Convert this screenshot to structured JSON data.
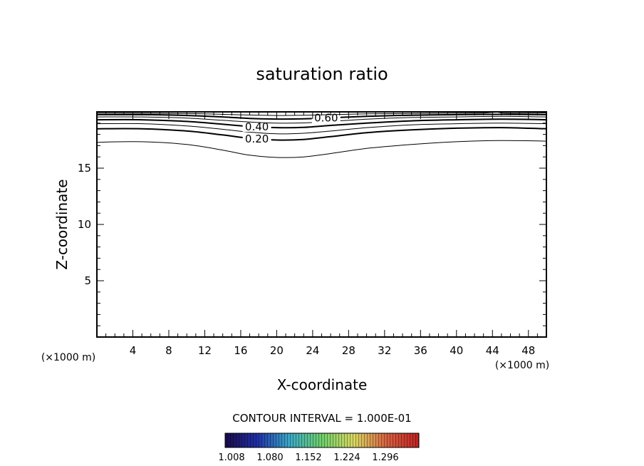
{
  "chart_data": {
    "type": "contour",
    "title": "saturation ratio",
    "xlabel": "X-coordinate",
    "ylabel": "Z-coordinate",
    "x_unit_label": "(×1000 m)",
    "x_unit_label_right": "(×1000 m)",
    "xlim": [
      0,
      50
    ],
    "ylim": [
      0,
      20
    ],
    "x_ticks": [
      "4",
      "8",
      "12",
      "16",
      "20",
      "24",
      "28",
      "32",
      "36",
      "40",
      "44",
      "48"
    ],
    "y_ticks": [
      "5",
      "10",
      "15"
    ],
    "x_tick_values": [
      4,
      8,
      12,
      16,
      20,
      24,
      28,
      32,
      36,
      40,
      44,
      48
    ],
    "y_tick_values": [
      5,
      10,
      15
    ],
    "contours": [
      {
        "level": 0.1,
        "label": "",
        "points": [
          [
            0,
            17.3
          ],
          [
            5,
            17.35
          ],
          [
            10,
            17.1
          ],
          [
            14,
            16.6
          ],
          [
            17,
            16.15
          ],
          [
            20,
            15.95
          ],
          [
            23,
            16.0
          ],
          [
            26,
            16.3
          ],
          [
            30,
            16.75
          ],
          [
            35,
            17.1
          ],
          [
            40,
            17.35
          ],
          [
            45,
            17.45
          ],
          [
            50,
            17.4
          ]
        ]
      },
      {
        "level": 0.2,
        "label": "0.20",
        "points": [
          [
            0,
            18.5
          ],
          [
            5,
            18.5
          ],
          [
            10,
            18.3
          ],
          [
            14,
            17.95
          ],
          [
            17,
            17.65
          ],
          [
            20,
            17.5
          ],
          [
            23,
            17.55
          ],
          [
            26,
            17.8
          ],
          [
            30,
            18.15
          ],
          [
            35,
            18.4
          ],
          [
            40,
            18.55
          ],
          [
            45,
            18.6
          ],
          [
            50,
            18.5
          ]
        ]
      },
      {
        "level": 0.3,
        "label": "",
        "points": [
          [
            0,
            18.95
          ],
          [
            5,
            18.95
          ],
          [
            10,
            18.75
          ],
          [
            14,
            18.45
          ],
          [
            17,
            18.2
          ],
          [
            20,
            18.05
          ],
          [
            23,
            18.1
          ],
          [
            26,
            18.3
          ],
          [
            30,
            18.6
          ],
          [
            35,
            18.85
          ],
          [
            40,
            18.95
          ],
          [
            45,
            19.0
          ],
          [
            50,
            18.95
          ]
        ]
      },
      {
        "level": 0.4,
        "label": "0.40",
        "points": [
          [
            0,
            19.3
          ],
          [
            5,
            19.3
          ],
          [
            10,
            19.15
          ],
          [
            14,
            18.9
          ],
          [
            17,
            18.7
          ],
          [
            20,
            18.6
          ],
          [
            23,
            18.62
          ],
          [
            26,
            18.8
          ],
          [
            30,
            19.0
          ],
          [
            35,
            19.2
          ],
          [
            40,
            19.3
          ],
          [
            45,
            19.35
          ],
          [
            50,
            19.3
          ]
        ]
      },
      {
        "level": 0.5,
        "label": "",
        "points": [
          [
            0,
            19.55
          ],
          [
            5,
            19.55
          ],
          [
            10,
            19.45
          ],
          [
            14,
            19.25
          ],
          [
            17,
            19.1
          ],
          [
            20,
            19.0
          ],
          [
            23,
            19.02
          ],
          [
            26,
            19.15
          ],
          [
            30,
            19.35
          ],
          [
            35,
            19.5
          ],
          [
            40,
            19.55
          ],
          [
            45,
            19.6
          ],
          [
            50,
            19.55
          ]
        ]
      },
      {
        "level": 0.6,
        "label": "0.60",
        "points": [
          [
            0,
            19.75
          ],
          [
            5,
            19.75
          ],
          [
            10,
            19.68
          ],
          [
            14,
            19.55
          ],
          [
            17,
            19.42
          ],
          [
            20,
            19.36
          ],
          [
            23,
            19.38
          ],
          [
            26,
            19.48
          ],
          [
            30,
            19.6
          ],
          [
            35,
            19.7
          ],
          [
            40,
            19.75
          ],
          [
            45,
            19.78
          ],
          [
            50,
            19.75
          ]
        ]
      },
      {
        "level": 0.7,
        "label": "",
        "points": [
          [
            0,
            19.88
          ],
          [
            10,
            19.85
          ],
          [
            17,
            19.72
          ],
          [
            20,
            19.68
          ],
          [
            23,
            19.7
          ],
          [
            30,
            19.82
          ],
          [
            40,
            19.88
          ],
          [
            43,
            19.9
          ],
          [
            44.5,
            19.97
          ],
          [
            45.5,
            19.88
          ],
          [
            50,
            19.9
          ]
        ]
      }
    ],
    "contour_interval_text": "CONTOUR INTERVAL = 1.000E-01",
    "colorbar": {
      "labels": [
        "1.008",
        "1.080",
        "1.152",
        "1.224",
        "1.296"
      ],
      "colors": [
        "#1a0a4a",
        "#1f2fa8",
        "#3aa9c8",
        "#6fd06a",
        "#d8d860",
        "#d86040",
        "#c02020"
      ]
    },
    "grid": false
  }
}
